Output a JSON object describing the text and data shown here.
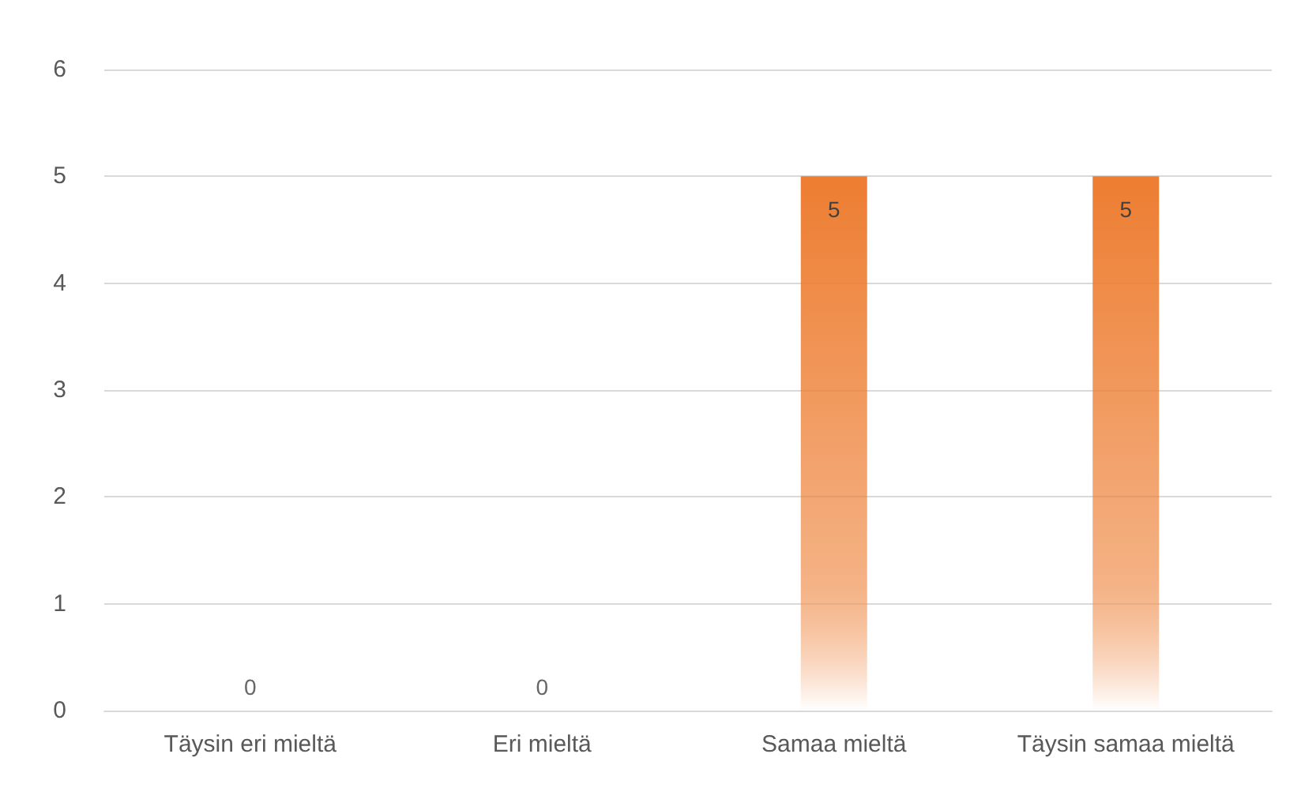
{
  "chart_data": {
    "type": "bar",
    "categories": [
      "Täysin eri mieltä",
      "Eri mieltä",
      "Samaa mieltä",
      "Täysin samaa mieltä"
    ],
    "values": [
      0,
      0,
      5,
      5
    ],
    "color": "#ed7d31",
    "ylim": [
      0,
      6
    ],
    "yticks": [
      0,
      1,
      2,
      3,
      4,
      5,
      6
    ],
    "grid": "y",
    "data_labels": true
  }
}
